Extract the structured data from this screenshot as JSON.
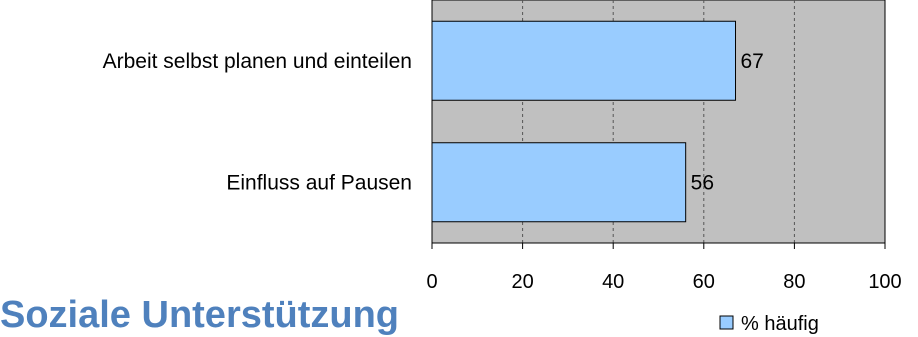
{
  "page_heading": "Soziale Unterstützung",
  "chart_data": {
    "type": "bar",
    "orientation": "horizontal",
    "categories": [
      "Arbeit selbst planen und einteilen",
      "Einfluss auf Pausen"
    ],
    "series": [
      {
        "name": "% häufig",
        "values": [
          67,
          56
        ],
        "color": "#99ccff"
      }
    ],
    "xlim": [
      0,
      100
    ],
    "xticks": [
      0,
      20,
      40,
      60,
      80,
      100
    ],
    "xtick_labels": [
      "0",
      "20",
      "40",
      "60",
      "80",
      "100"
    ],
    "grid": "vertical dashed",
    "legend_position": "bottom-right",
    "plot_background": "#c0c0c0",
    "data_labels": [
      "67",
      "56"
    ]
  }
}
